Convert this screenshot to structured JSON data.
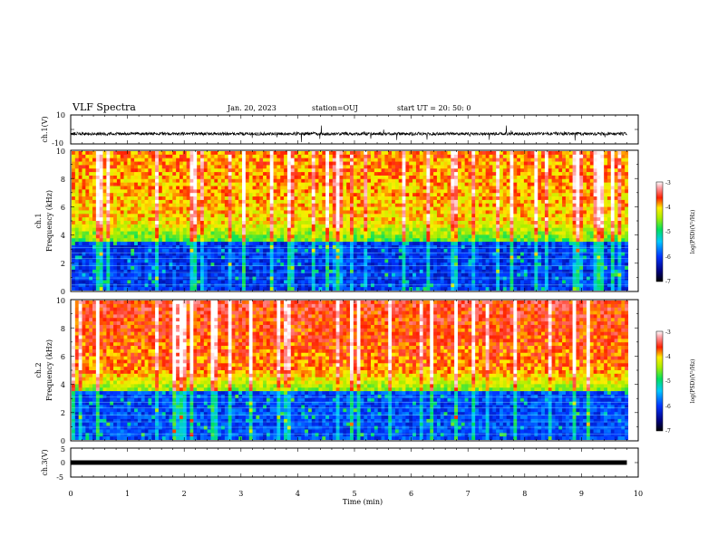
{
  "header": {
    "title": "VLF Spectra",
    "date": "Jan. 20, 2023",
    "station": "station=OUJ",
    "start_time": "start UT =   20: 50: 0"
  },
  "chart_data": [
    {
      "type": "line",
      "ylabel": "ch.1(V)",
      "xlim": [
        0,
        10
      ],
      "ylim": [
        -10,
        10
      ],
      "yticks": [
        "10",
        "-10"
      ],
      "description_level": -3
    },
    {
      "type": "heatmap",
      "ylabel": "Frequency (kHz)",
      "channel_label": "ch.1",
      "xlim": [
        0,
        10
      ],
      "ylim": [
        0,
        10
      ],
      "yticks": [
        "0",
        "2",
        "4",
        "6",
        "8",
        "10"
      ],
      "colorbar": {
        "label": "log(PSD)(V²/Hz)",
        "range": [
          -7,
          -3
        ],
        "ticks": [
          "-3",
          "-4",
          "-5",
          "-6",
          "-7"
        ]
      }
    },
    {
      "type": "heatmap",
      "ylabel": "Frequency (kHz)",
      "channel_label": "ch.2",
      "xlim": [
        0,
        10
      ],
      "ylim": [
        0,
        10
      ],
      "yticks": [
        "0",
        "2",
        "4",
        "6",
        "8",
        "10"
      ],
      "colorbar": {
        "label": "log(PSD)(V²/Hz)",
        "range": [
          -7,
          -3
        ],
        "ticks": [
          "-3",
          "-4",
          "-5",
          "-6",
          "-7"
        ]
      }
    },
    {
      "type": "line",
      "ylabel": "ch.3(V)",
      "xlim": [
        0,
        10
      ],
      "ylim": [
        -5,
        5
      ],
      "yticks": [
        "5",
        "0",
        "-5"
      ],
      "x": [
        0,
        9.8
      ],
      "y": [
        0,
        0
      ],
      "xlabel": "Time (min)",
      "xticks": [
        "0",
        "1",
        "2",
        "3",
        "4",
        "5",
        "6",
        "7",
        "8",
        "9",
        "10"
      ]
    }
  ]
}
